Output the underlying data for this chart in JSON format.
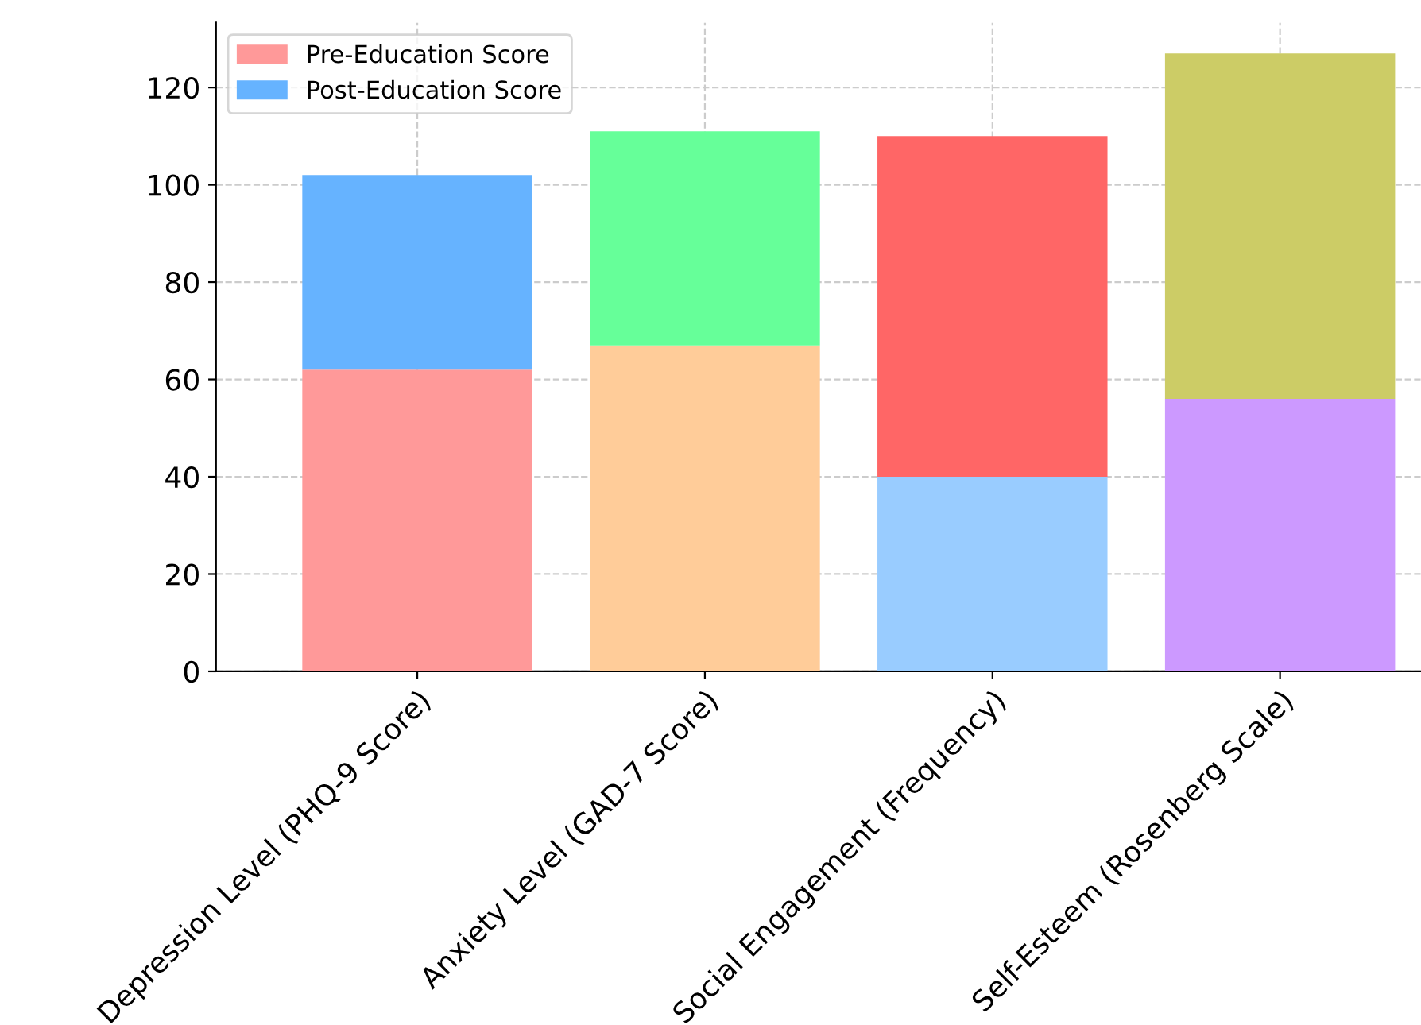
{
  "chart_data": {
    "type": "bar",
    "stacked": true,
    "categories": [
      "Depression Level (PHQ-9 Score)",
      "Anxiety Level (GAD-7 Score)",
      "Social Engagement (Frequency)",
      "Self-Esteem (Rosenberg Scale)"
    ],
    "series": [
      {
        "name": "Pre-Education Score",
        "colors": [
          "#ff9999",
          "#ffcc99",
          "#99ccff",
          "#cc99ff"
        ],
        "values": [
          62,
          67,
          40,
          56
        ]
      },
      {
        "name": "Post-Education Score",
        "colors": [
          "#66b3ff",
          "#66ff99",
          "#ff6666",
          "#cccc66"
        ],
        "values": [
          40,
          44,
          70,
          71
        ]
      }
    ],
    "ylim": [
      0,
      133.35
    ],
    "yticks": [
      0,
      20,
      40,
      60,
      80,
      100,
      120
    ],
    "grid": true,
    "legend": "top left"
  }
}
